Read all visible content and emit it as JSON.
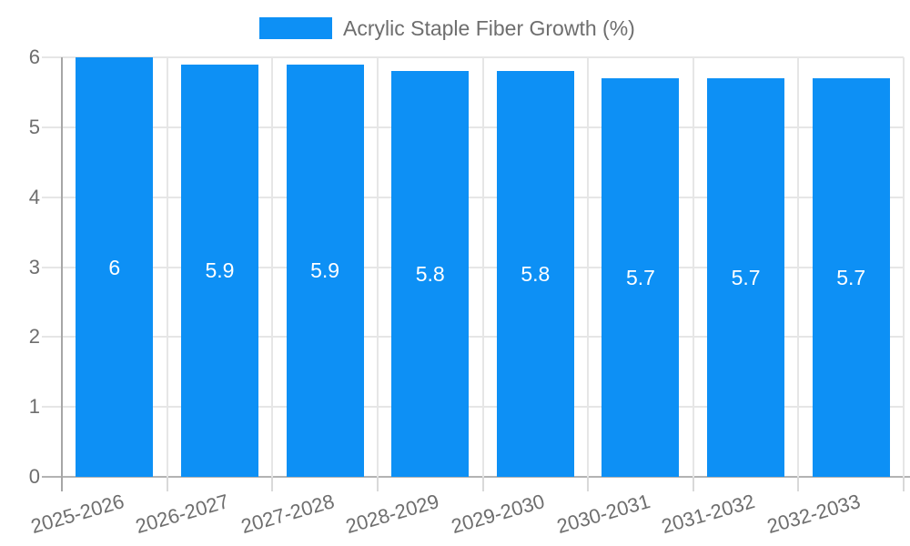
{
  "chart_data": {
    "type": "bar",
    "title": "Acrylic Staple Fiber Growth (%)",
    "legend": {
      "position": "top",
      "label": "Acrylic Staple Fiber Growth (%)"
    },
    "categories": [
      "2025-2026",
      "2026-2027",
      "2027-2028",
      "2028-2029",
      "2029-2030",
      "2030-2031",
      "2031-2032",
      "2032-2033"
    ],
    "values": [
      6,
      5.9,
      5.9,
      5.8,
      5.8,
      5.7,
      5.7,
      5.7
    ],
    "value_labels": [
      "6",
      "5.9",
      "5.9",
      "5.8",
      "5.8",
      "5.7",
      "5.7",
      "5.7"
    ],
    "xlabel": "",
    "ylabel": "",
    "ylim": [
      0,
      6
    ],
    "yticks": [
      0,
      1,
      2,
      3,
      4,
      5,
      6
    ],
    "grid": true,
    "colors": {
      "bar": "#0d90f5",
      "value_label": "#ffffff",
      "axis_text": "#6e6e6e",
      "legend_text": "#6e6e6e",
      "gridline": "#e6e6e6",
      "tick": "#d9d9d9",
      "axis_line": "#a6a6a6",
      "baseline": "#b3b3b3",
      "background": "#ffffff"
    }
  }
}
